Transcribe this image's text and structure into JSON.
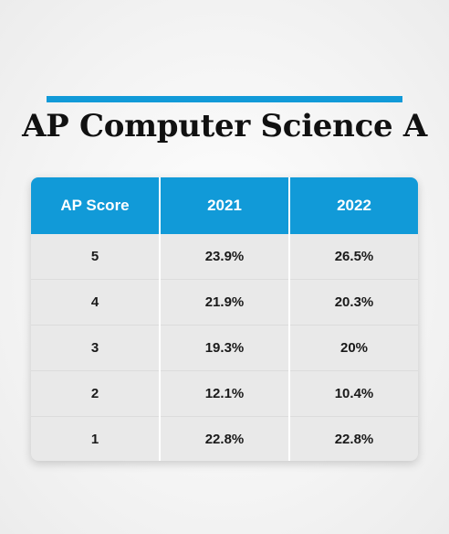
{
  "header": {
    "title": "AP Computer Science A"
  },
  "colors": {
    "accent": "#119ad8",
    "card_background": "#e9e9e9",
    "text": "#111111"
  },
  "chart_data": {
    "type": "table",
    "title": "AP Computer Science A",
    "columns": [
      "AP Score",
      "2021",
      "2022"
    ],
    "rows": [
      [
        "5",
        "23.9%",
        "26.5%"
      ],
      [
        "4",
        "21.9%",
        "20.3%"
      ],
      [
        "3",
        "19.3%",
        "20%"
      ],
      [
        "2",
        "12.1%",
        "10.4%"
      ],
      [
        "1",
        "22.8%",
        "22.8%"
      ]
    ]
  }
}
